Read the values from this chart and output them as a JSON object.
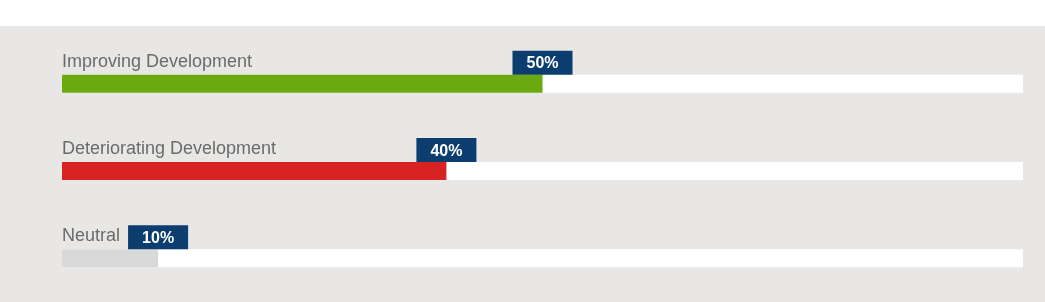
{
  "chart_data": {
    "type": "bar",
    "orientation": "horizontal",
    "categories": [
      "Improving Development",
      "Deteriorating Development",
      "Neutral"
    ],
    "values": [
      50,
      40,
      10
    ],
    "colors": [
      "#6aaa0e",
      "#d82323",
      "#d9d9d9"
    ],
    "value_labels": [
      "50%",
      "40%",
      "10%"
    ],
    "xlim": [
      0,
      100
    ],
    "tick_labels": "y"
  }
}
